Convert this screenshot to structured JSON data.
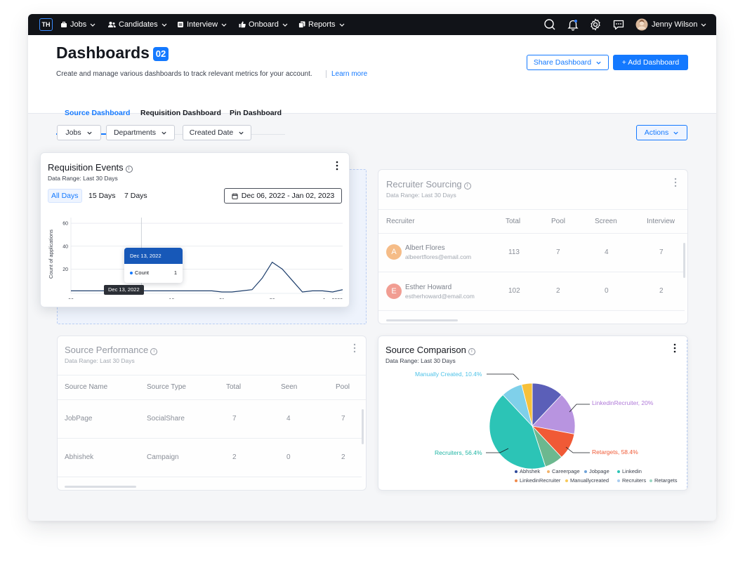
{
  "nav": {
    "logo": "TH",
    "items": [
      {
        "label": "Jobs",
        "icon": "briefcase-icon"
      },
      {
        "label": "Candidates",
        "icon": "users-icon"
      },
      {
        "label": "Interview",
        "icon": "clipboard-icon"
      },
      {
        "label": "Onboard",
        "icon": "thumbs-up-icon"
      },
      {
        "label": "Reports",
        "icon": "report-icon"
      }
    ],
    "user_name": "Jenny Wilson"
  },
  "header": {
    "title": "Dashboards",
    "count": "02",
    "subtitle": "Create and manage various dashboards to track relevant metrics for your account.",
    "learn_more": "Learn more",
    "share_label": "Share Dashboard",
    "add_label": "+ Add Dashboard"
  },
  "tabs": [
    "Source Dashboard",
    "Requisition Dashboard",
    "Pin Dashboard"
  ],
  "filters": [
    "Jobs",
    "Departments",
    "Created Date"
  ],
  "actions_label": "Actions",
  "requisition": {
    "title": "Requisition Events",
    "range": "Data Range: Last 30 Days",
    "pills": [
      "All Days",
      "15 Days",
      "7 Days"
    ],
    "date_range": "Dec 06, 2022 - Jan 02, 2023",
    "tooltip_date": "Dec 13, 2022",
    "tooltip_label": "Count",
    "tooltip_value": "1",
    "crosshair_label": "Dec 13, 2022"
  },
  "chart_data": {
    "type": "line",
    "title": "",
    "ylabel": "Count of applications",
    "xlabel": "",
    "x_ticks": [
      "06",
      "16",
      "21",
      "26",
      "Jan 2023"
    ],
    "y_ticks": [
      20,
      40,
      60
    ],
    "ylim": [
      0,
      65
    ],
    "x": [
      "Dec 06",
      "Dec 07",
      "Dec 08",
      "Dec 09",
      "Dec 10",
      "Dec 11",
      "Dec 12",
      "Dec 13",
      "Dec 14",
      "Dec 15",
      "Dec 16",
      "Dec 17",
      "Dec 18",
      "Dec 19",
      "Dec 20",
      "Dec 21",
      "Dec 22",
      "Dec 23",
      "Dec 24",
      "Dec 25",
      "Dec 26",
      "Dec 27",
      "Dec 28",
      "Dec 29",
      "Dec 30",
      "Dec 31",
      "Jan 01",
      "Jan 02"
    ],
    "values": [
      1,
      1,
      1,
      1,
      1,
      1,
      1,
      1,
      1,
      1,
      1,
      1,
      1,
      1,
      1,
      0,
      0,
      1,
      2,
      12,
      26,
      20,
      10,
      0,
      1,
      1,
      0,
      2
    ]
  },
  "recruiter": {
    "title": "Recruiter Sourcing",
    "range": "Data Range: Last 30 Days",
    "columns": [
      "Recruiter",
      "Total",
      "Pool",
      "Screen",
      "Interview"
    ],
    "rows": [
      {
        "initial": "A",
        "name": "Albert Flores",
        "email": "albeertflores@email.com",
        "total": "113",
        "pool": "7",
        "screen": "4",
        "interview": "7",
        "color": "#f5a45b"
      },
      {
        "initial": "E",
        "name": "Esther Howard",
        "email": "estherhoward@email.com",
        "total": "102",
        "pool": "2",
        "screen": "0",
        "interview": "2",
        "color": "#ee7a6b"
      }
    ]
  },
  "source_perf": {
    "title": "Source Performance",
    "range": "Data Range: Last 30 Days",
    "columns": [
      "Source Name",
      "Source Type",
      "Total",
      "Seen",
      "Pool"
    ],
    "rows": [
      {
        "name": "JobPage",
        "type": "SocialShare",
        "total": "7",
        "seen": "4",
        "pool": "7"
      },
      {
        "name": "Abhishek",
        "type": "Campaign",
        "total": "2",
        "seen": "0",
        "pool": "2"
      }
    ]
  },
  "source_comparison": {
    "title": "Source Comparison",
    "range": "Data Range: Last 30 Days",
    "labels": {
      "manual": "Manually Created, 10.4%",
      "linkedinrec": "LinkedinRecruiter, 20%",
      "recruiters": "Recruiters, 56.4%",
      "retargets": "Retargets, 58.4%"
    },
    "legend": [
      {
        "name": "Abhshek",
        "color": "#2f4a9b"
      },
      {
        "name": "Careerpage",
        "color": "#f2b36a"
      },
      {
        "name": "Jobpage",
        "color": "#6fa3d8"
      },
      {
        "name": "Linkedin",
        "color": "#2cc4b6"
      },
      {
        "name": "LinkedinRecruiter",
        "color": "#f08a4b"
      },
      {
        "name": "Manuallycreated",
        "color": "#f7c95a"
      },
      {
        "name": "Recruiters",
        "color": "#a9cdf0"
      },
      {
        "name": "Retargets",
        "color": "#9ad7c3"
      }
    ],
    "slices": [
      {
        "name": "Abhshek",
        "value": 12,
        "color": "#5b5fb8"
      },
      {
        "name": "LinkedinRecruiter",
        "value": 16,
        "color": "#b894e0"
      },
      {
        "name": "Retargets",
        "value": 10,
        "color": "#f05a36"
      },
      {
        "name": "Retargets-2",
        "value": 7,
        "color": "#6cb88f"
      },
      {
        "name": "Recruiters",
        "value": 43,
        "color": "#2cc4b6"
      },
      {
        "name": "Manually Created",
        "value": 8,
        "color": "#7fd0ea"
      },
      {
        "name": "Careerpage",
        "value": 4,
        "color": "#f7c13a"
      }
    ]
  }
}
